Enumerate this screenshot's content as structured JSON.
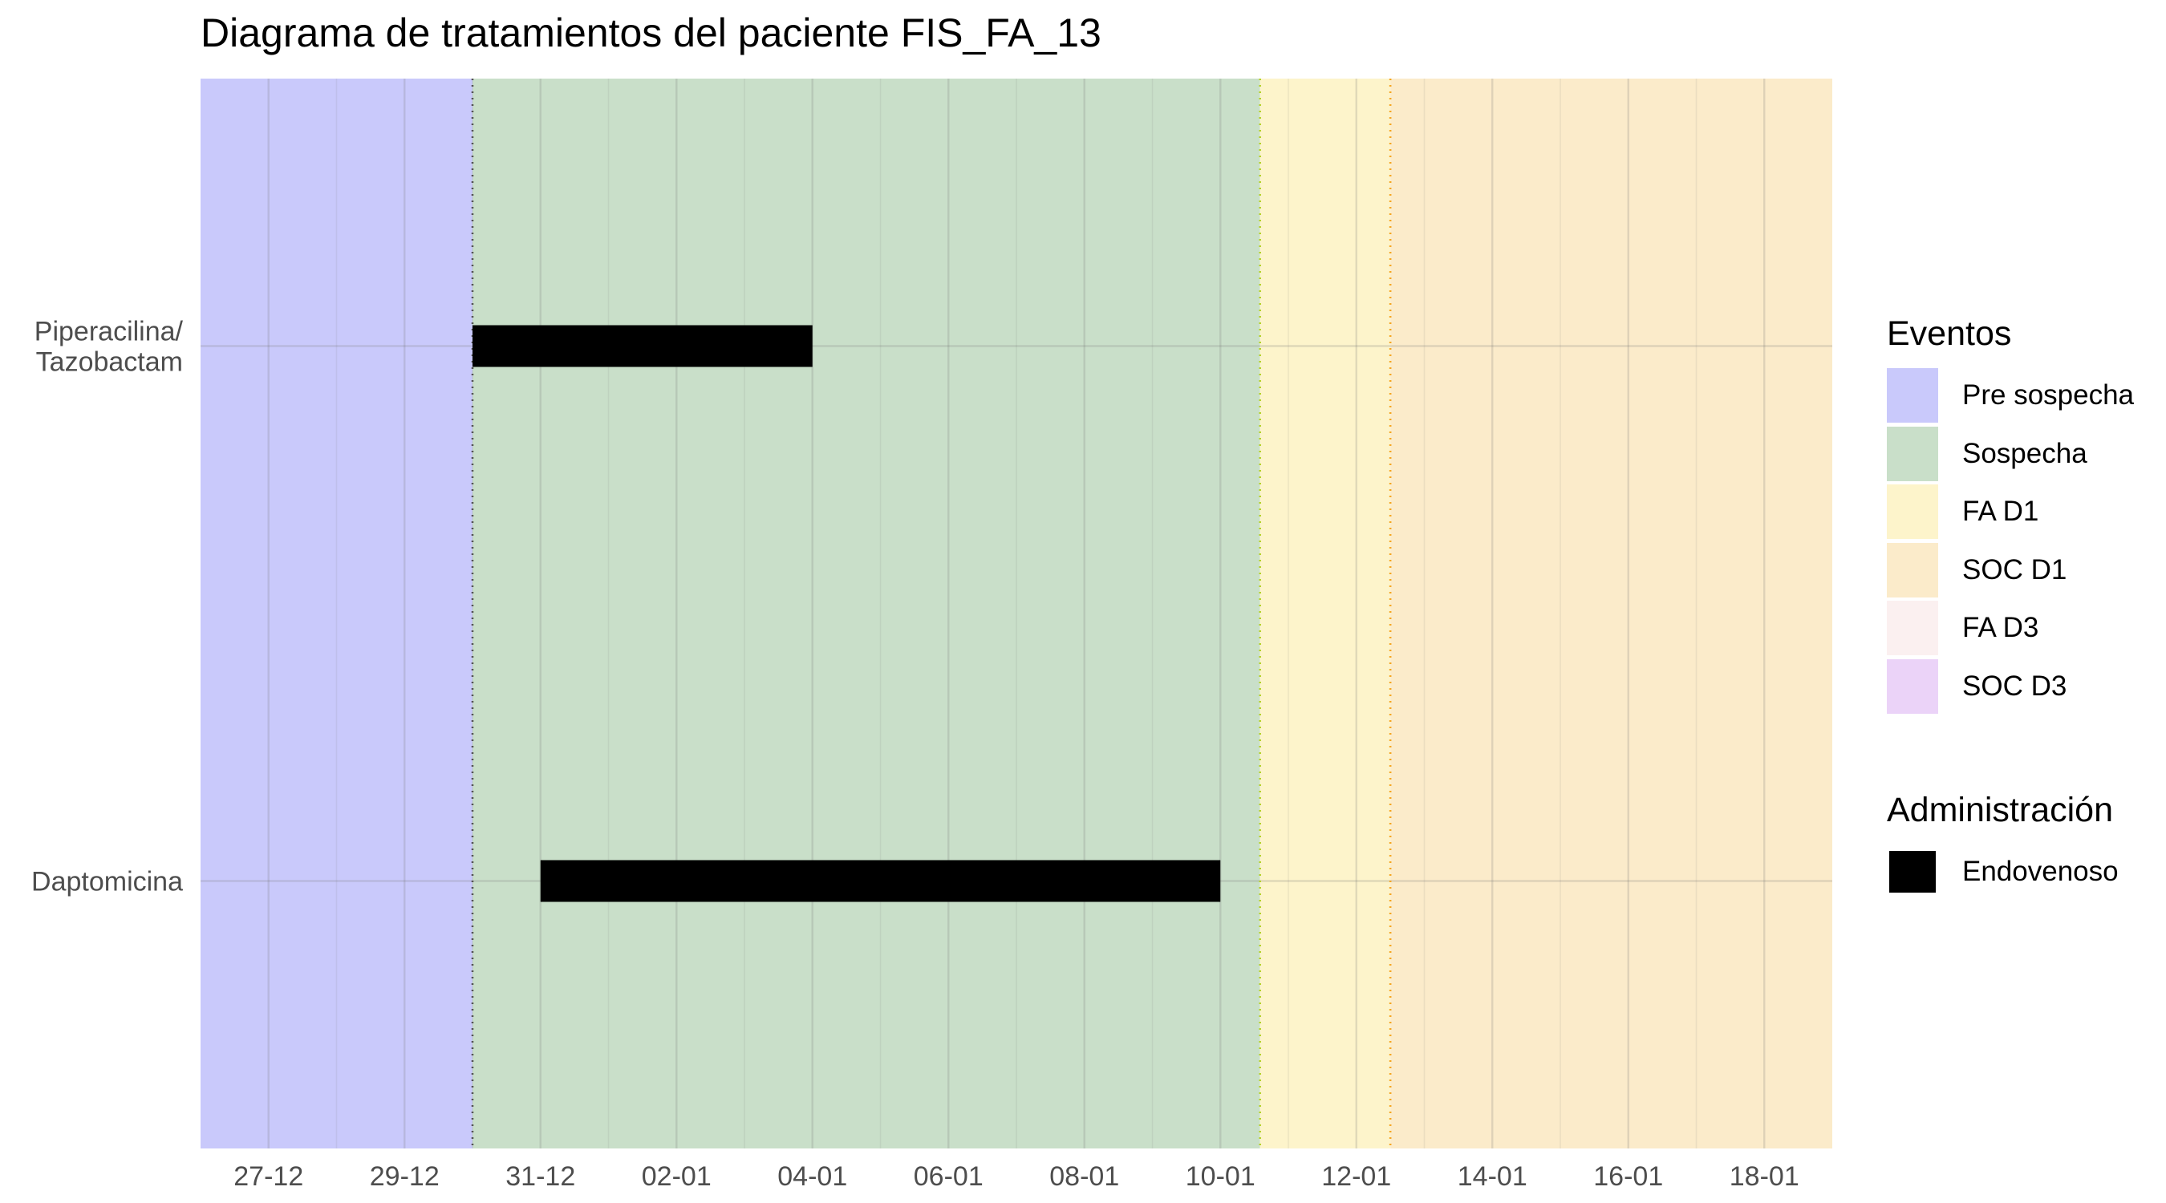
{
  "chart_data": {
    "type": "timeline",
    "title": "Diagrama de tratamientos del paciente FIS_FA_13",
    "xlabel": "",
    "ylabel": "",
    "x_axis": {
      "type": "date",
      "range": [
        "2023-12-26",
        "2024-01-19"
      ],
      "tick_dates": [
        "2023-12-27",
        "2023-12-29",
        "2023-12-31",
        "2024-01-02",
        "2024-01-04",
        "2024-01-06",
        "2024-01-08",
        "2024-01-10",
        "2024-01-12",
        "2024-01-14",
        "2024-01-16",
        "2024-01-18"
      ],
      "tick_labels": [
        "27-12",
        "29-12",
        "31-12",
        "02-01",
        "04-01",
        "06-01",
        "08-01",
        "10-01",
        "12-01",
        "14-01",
        "16-01",
        "18-01"
      ]
    },
    "categories": [
      "Piperacilina/\nTazobactam",
      "Daptomicina"
    ],
    "treatments": [
      {
        "drug": "Piperacilina/\nTazobactam",
        "start": "2023-12-30",
        "end": "2024-01-04",
        "route": "Endovenoso"
      },
      {
        "drug": "Daptomicina",
        "start": "2023-12-31",
        "end": "2024-01-10",
        "route": "Endovenoso"
      }
    ],
    "event_periods": [
      {
        "name": "Pre sospecha",
        "start": "2023-12-26",
        "end": "2023-12-30",
        "color": "#c9c9fb"
      },
      {
        "name": "Sospecha",
        "start": "2023-12-30",
        "end": "2024-01-10T14:00",
        "color": "#c9dfc9"
      },
      {
        "name": "FA D1",
        "start": "2024-01-10T14:00",
        "end": "2024-01-12T12:00",
        "color": "#fdf4cb"
      },
      {
        "name": "SOC D1",
        "start": "2024-01-12T12:00",
        "end": "2024-01-19",
        "color": "#fbebca"
      }
    ],
    "event_lines": [
      {
        "date": "2023-12-30",
        "color": "#555555"
      },
      {
        "date": "2024-01-10T14:00",
        "color": "#b5d22a"
      },
      {
        "date": "2024-01-12T12:00",
        "color": "#f5a623"
      }
    ],
    "legends": [
      {
        "title": "Eventos",
        "items": [
          {
            "label": "Pre sospecha",
            "color": "#c9c9fb"
          },
          {
            "label": "Sospecha",
            "color": "#c9dfc9"
          },
          {
            "label": "FA D1",
            "color": "#fdf4cb"
          },
          {
            "label": "SOC D1",
            "color": "#fbebca"
          },
          {
            "label": "FA D3",
            "color": "#fbf0f0"
          },
          {
            "label": "SOC D3",
            "color": "#ebd3f8"
          }
        ]
      },
      {
        "title": "Administración",
        "items": [
          {
            "label": "Endovenoso",
            "color": "#000000"
          }
        ]
      }
    ],
    "grid": true,
    "legend_position": "right"
  }
}
